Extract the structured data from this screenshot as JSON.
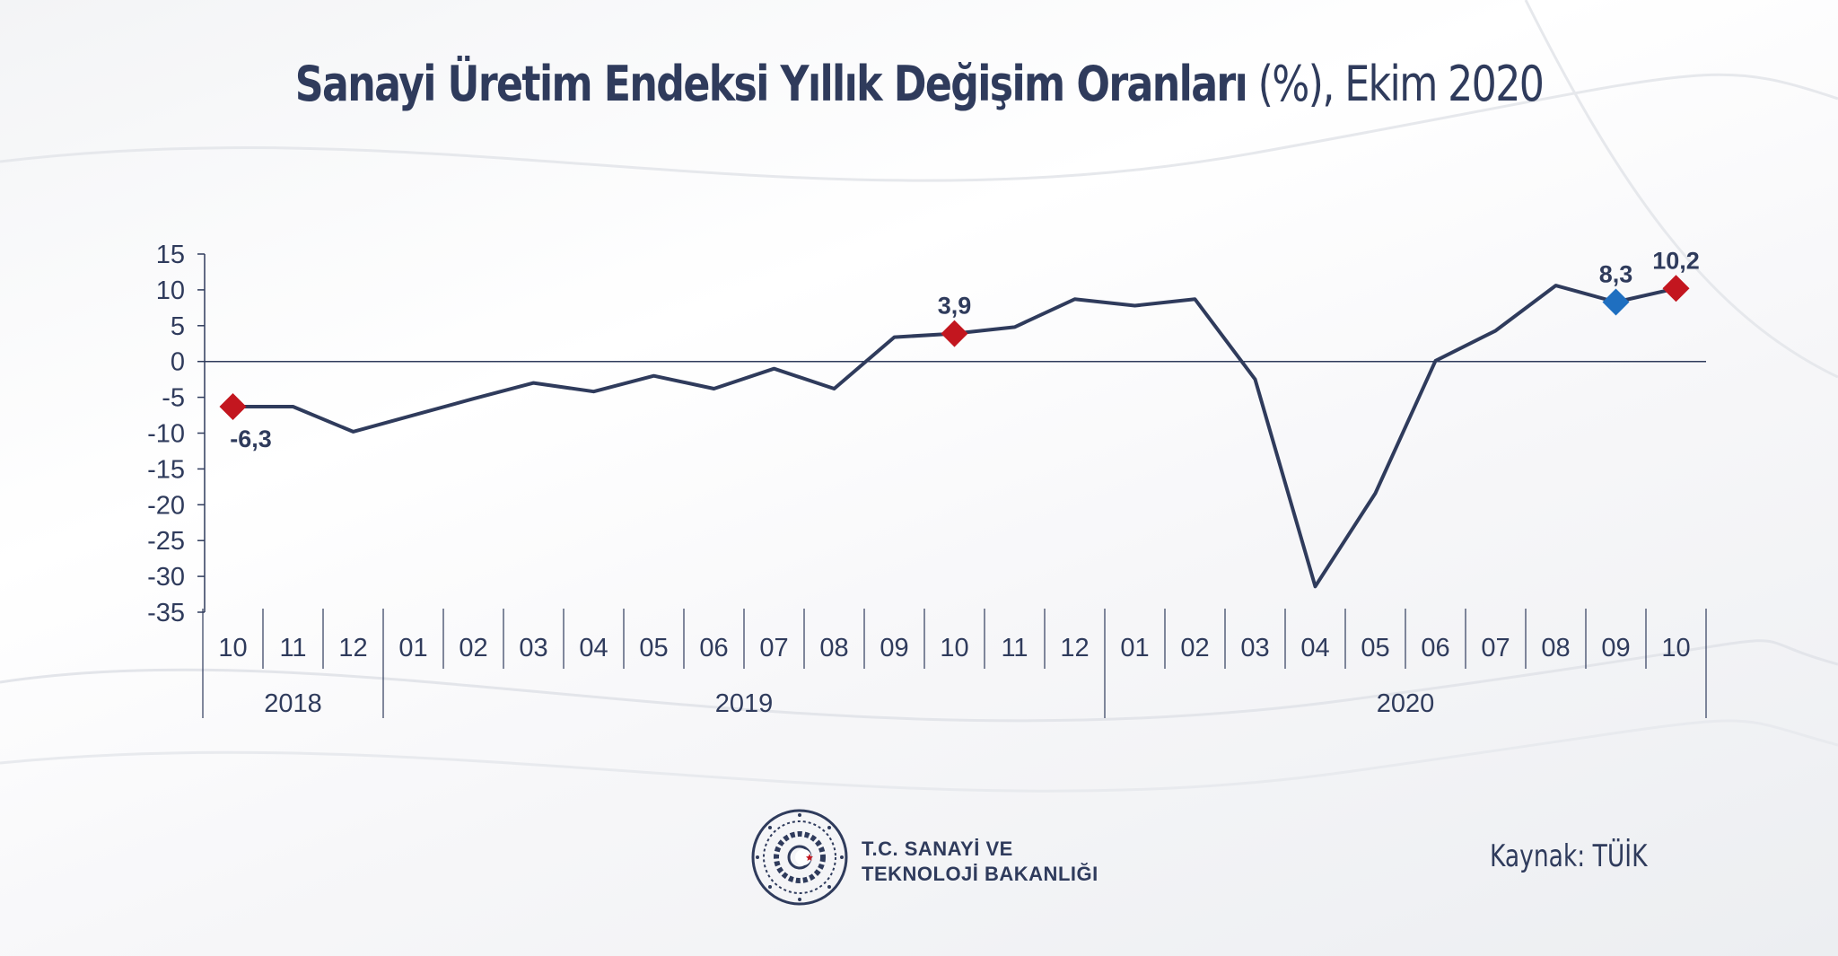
{
  "title": {
    "bold_part": "Sanayi Üretim Endeksi Yıllık Değişim Oranları",
    "light_part": " (%), Ekim 2020"
  },
  "footer": {
    "ministry_line1": "T.C. SANAYİ VE",
    "ministry_line2": "TEKNOLOJİ BAKANLIĞI",
    "source": "Kaynak: TÜİK"
  },
  "colors": {
    "line": "#2f3b5c",
    "marker_red": "#c3161f",
    "marker_blue": "#1f6fc0",
    "text": "#2f3b5c"
  },
  "chart_data": {
    "type": "line",
    "title": "Sanayi Üretim Endeksi Yıllık Değişim Oranları (%), Ekim 2020",
    "categories": [
      "10",
      "11",
      "12",
      "01",
      "02",
      "03",
      "04",
      "05",
      "06",
      "07",
      "08",
      "09",
      "10",
      "11",
      "12",
      "01",
      "02",
      "03",
      "04",
      "05",
      "06",
      "07",
      "08",
      "09",
      "10"
    ],
    "year_groups": [
      {
        "label": "2018",
        "start": 0,
        "end": 2
      },
      {
        "label": "2019",
        "start": 3,
        "end": 14
      },
      {
        "label": "2020",
        "start": 15,
        "end": 24
      }
    ],
    "series": [
      {
        "values": [
          -6.3,
          -6.3,
          -9.8,
          -7.5,
          -5.2,
          -3.0,
          -4.2,
          -2.0,
          -3.8,
          -1.0,
          -3.8,
          3.4,
          3.9,
          4.8,
          8.7,
          7.8,
          8.7,
          -2.5,
          -31.4,
          -18.4,
          0.1,
          4.3,
          10.6,
          8.3,
          10.2
        ]
      }
    ],
    "highlighted_points": [
      {
        "index": 0,
        "label": "-6,3",
        "color": "red",
        "label_pos": "below"
      },
      {
        "index": 12,
        "label": "3,9",
        "color": "red",
        "label_pos": "above"
      },
      {
        "index": 23,
        "label": "8,3",
        "color": "blue",
        "label_pos": "above"
      },
      {
        "index": 24,
        "label": "10,2",
        "color": "red",
        "label_pos": "above"
      }
    ],
    "ylim": [
      -35,
      15
    ],
    "yticks": [
      15,
      10,
      5,
      0,
      -5,
      -10,
      -15,
      -20,
      -25,
      -30,
      -35
    ],
    "grid": false
  }
}
